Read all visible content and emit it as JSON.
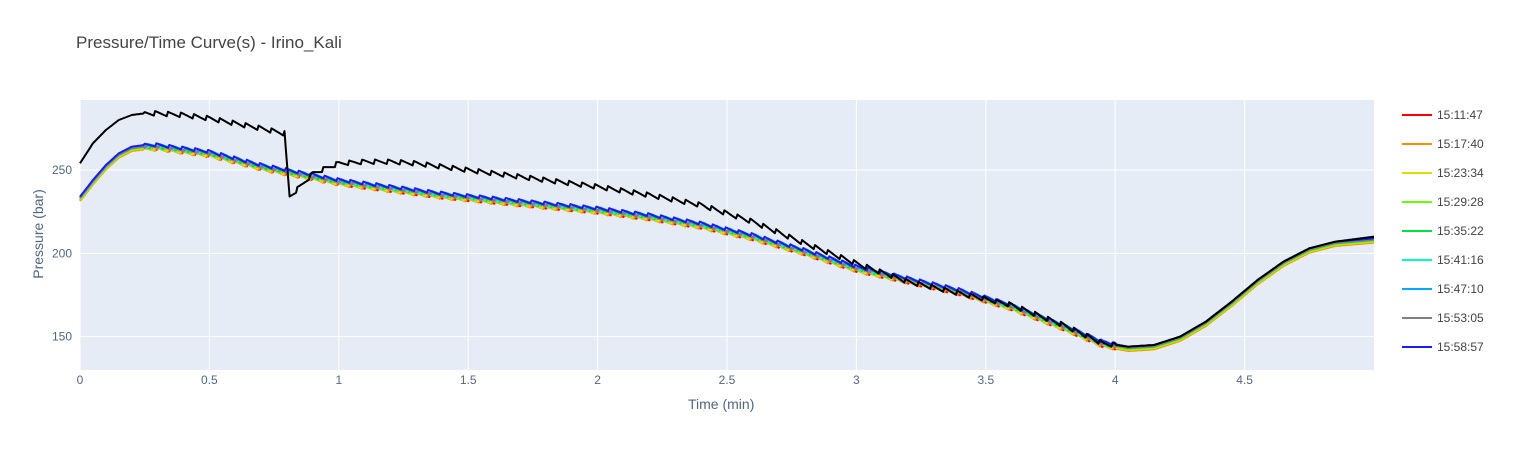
{
  "chart_data": {
    "type": "line",
    "title": "Pressure/Time Curve(s) - Irino_Kali",
    "xlabel": "Time (min)",
    "ylabel": "Pressure (bar)",
    "xlim": [
      0,
      5.0
    ],
    "ylim": [
      130,
      292
    ],
    "x_ticks": [
      "0",
      "0.5",
      "1",
      "1.5",
      "2",
      "2.5",
      "3",
      "3.5",
      "4",
      "4.5"
    ],
    "y_ticks": [
      "150",
      "200",
      "250"
    ],
    "grid": true,
    "background": "#e5ecf6",
    "legend_placement": "right",
    "series": [
      {
        "name": "15:11:47",
        "color": "#ff0000",
        "offset": -1.2,
        "sawtooth": 2.0
      },
      {
        "name": "15:17:40",
        "color": "#ff8c00",
        "offset": -1.6,
        "sawtooth": 2.0
      },
      {
        "name": "15:23:34",
        "color": "#dddd00",
        "offset": -1.0,
        "sawtooth": 2.0
      },
      {
        "name": "15:29:28",
        "color": "#66ff00",
        "offset": -0.5,
        "sawtooth": 2.0
      },
      {
        "name": "15:35:22",
        "color": "#00e040",
        "offset": 0.0,
        "sawtooth": 2.0
      },
      {
        "name": "15:41:16",
        "color": "#00ffbb",
        "offset": 0.4,
        "sawtooth": 2.0
      },
      {
        "name": "15:47:10",
        "color": "#00aaff",
        "offset": 0.7,
        "sawtooth": 2.0
      },
      {
        "name": "15:53:05",
        "color": "#808080",
        "offset": 0.2,
        "sawtooth": 2.0
      },
      {
        "name": "15:58:57",
        "color": "#1a1aff",
        "offset": 1.0,
        "sawtooth": 2.0
      },
      {
        "name": "",
        "color": "#000000",
        "offset": 0,
        "sawtooth": 3.0,
        "special": true
      }
    ],
    "base_curve": {
      "x": [
        0,
        0.05,
        0.1,
        0.15,
        0.2,
        0.25,
        0.3,
        0.35,
        0.4,
        0.5,
        0.6,
        0.7,
        0.8,
        0.9,
        1.0,
        1.2,
        1.4,
        1.6,
        1.8,
        2.0,
        2.2,
        2.4,
        2.6,
        2.8,
        3.0,
        3.2,
        3.4,
        3.6,
        3.8,
        3.95,
        4.05,
        4.15,
        4.25,
        4.35,
        4.45,
        4.55,
        4.65,
        4.75,
        4.85,
        5.0
      ],
      "y": [
        233,
        243,
        252,
        259,
        263,
        264,
        264,
        263,
        262,
        260,
        256,
        252,
        249,
        246,
        243,
        239,
        235,
        232,
        229,
        226,
        222,
        217,
        210,
        201,
        191,
        184,
        177,
        168,
        156,
        146,
        143,
        144,
        149,
        158,
        170,
        183,
        194,
        202,
        206,
        208
      ]
    },
    "special_curve": {
      "x": [
        0,
        0.05,
        0.1,
        0.15,
        0.2,
        0.25,
        0.3,
        0.4,
        0.5,
        0.6,
        0.7,
        0.79,
        0.81,
        0.85,
        0.9,
        1.0,
        1.1,
        1.2,
        1.3,
        1.4,
        1.5,
        1.6,
        1.8,
        2.0,
        2.2,
        2.4,
        2.6,
        2.8,
        3.0,
        3.2,
        3.4,
        3.6,
        3.8,
        3.95,
        4.05,
        4.15,
        4.25,
        4.35,
        4.45,
        4.55,
        4.65,
        4.75,
        4.85,
        5.0
      ],
      "y": [
        254,
        266,
        274,
        280,
        283,
        284,
        284,
        283,
        281,
        278,
        275,
        272,
        234,
        240,
        248,
        254,
        255,
        255,
        254,
        252,
        250,
        248,
        244,
        240,
        235,
        229,
        219,
        206,
        194,
        183,
        176,
        169,
        157,
        146,
        144,
        145,
        150,
        159,
        171,
        184,
        195,
        203,
        207,
        210
      ]
    }
  }
}
